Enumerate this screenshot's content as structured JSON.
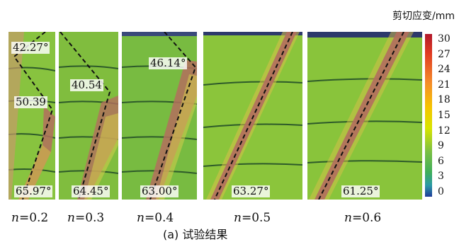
{
  "colorbar": {
    "title": "剪切应变/mm",
    "ticks": [
      "30",
      "27",
      "24",
      "21",
      "18",
      "15",
      "12",
      "9",
      "6",
      "3",
      "0"
    ]
  },
  "panels": [
    {
      "n_label": "=0.2",
      "angles": [
        "42.27°",
        "50.39",
        "65.97°"
      ]
    },
    {
      "n_label": "=0.3",
      "angles": [
        "40.54",
        "64.45°"
      ]
    },
    {
      "n_label": "=0.4",
      "angles": [
        "46.14°",
        "63.00°"
      ]
    },
    {
      "n_label": "=0.5",
      "angles": [
        "63.27°"
      ]
    },
    {
      "n_label": "=0.6",
      "angles": [
        "61.25°"
      ]
    }
  ],
  "n_symbol": "n",
  "caption": "(a) 试验结果",
  "colors": {
    "soil_green": "#7cbf3a",
    "shear_band": "#b46e5e",
    "top_band": "#2d3a6b"
  }
}
